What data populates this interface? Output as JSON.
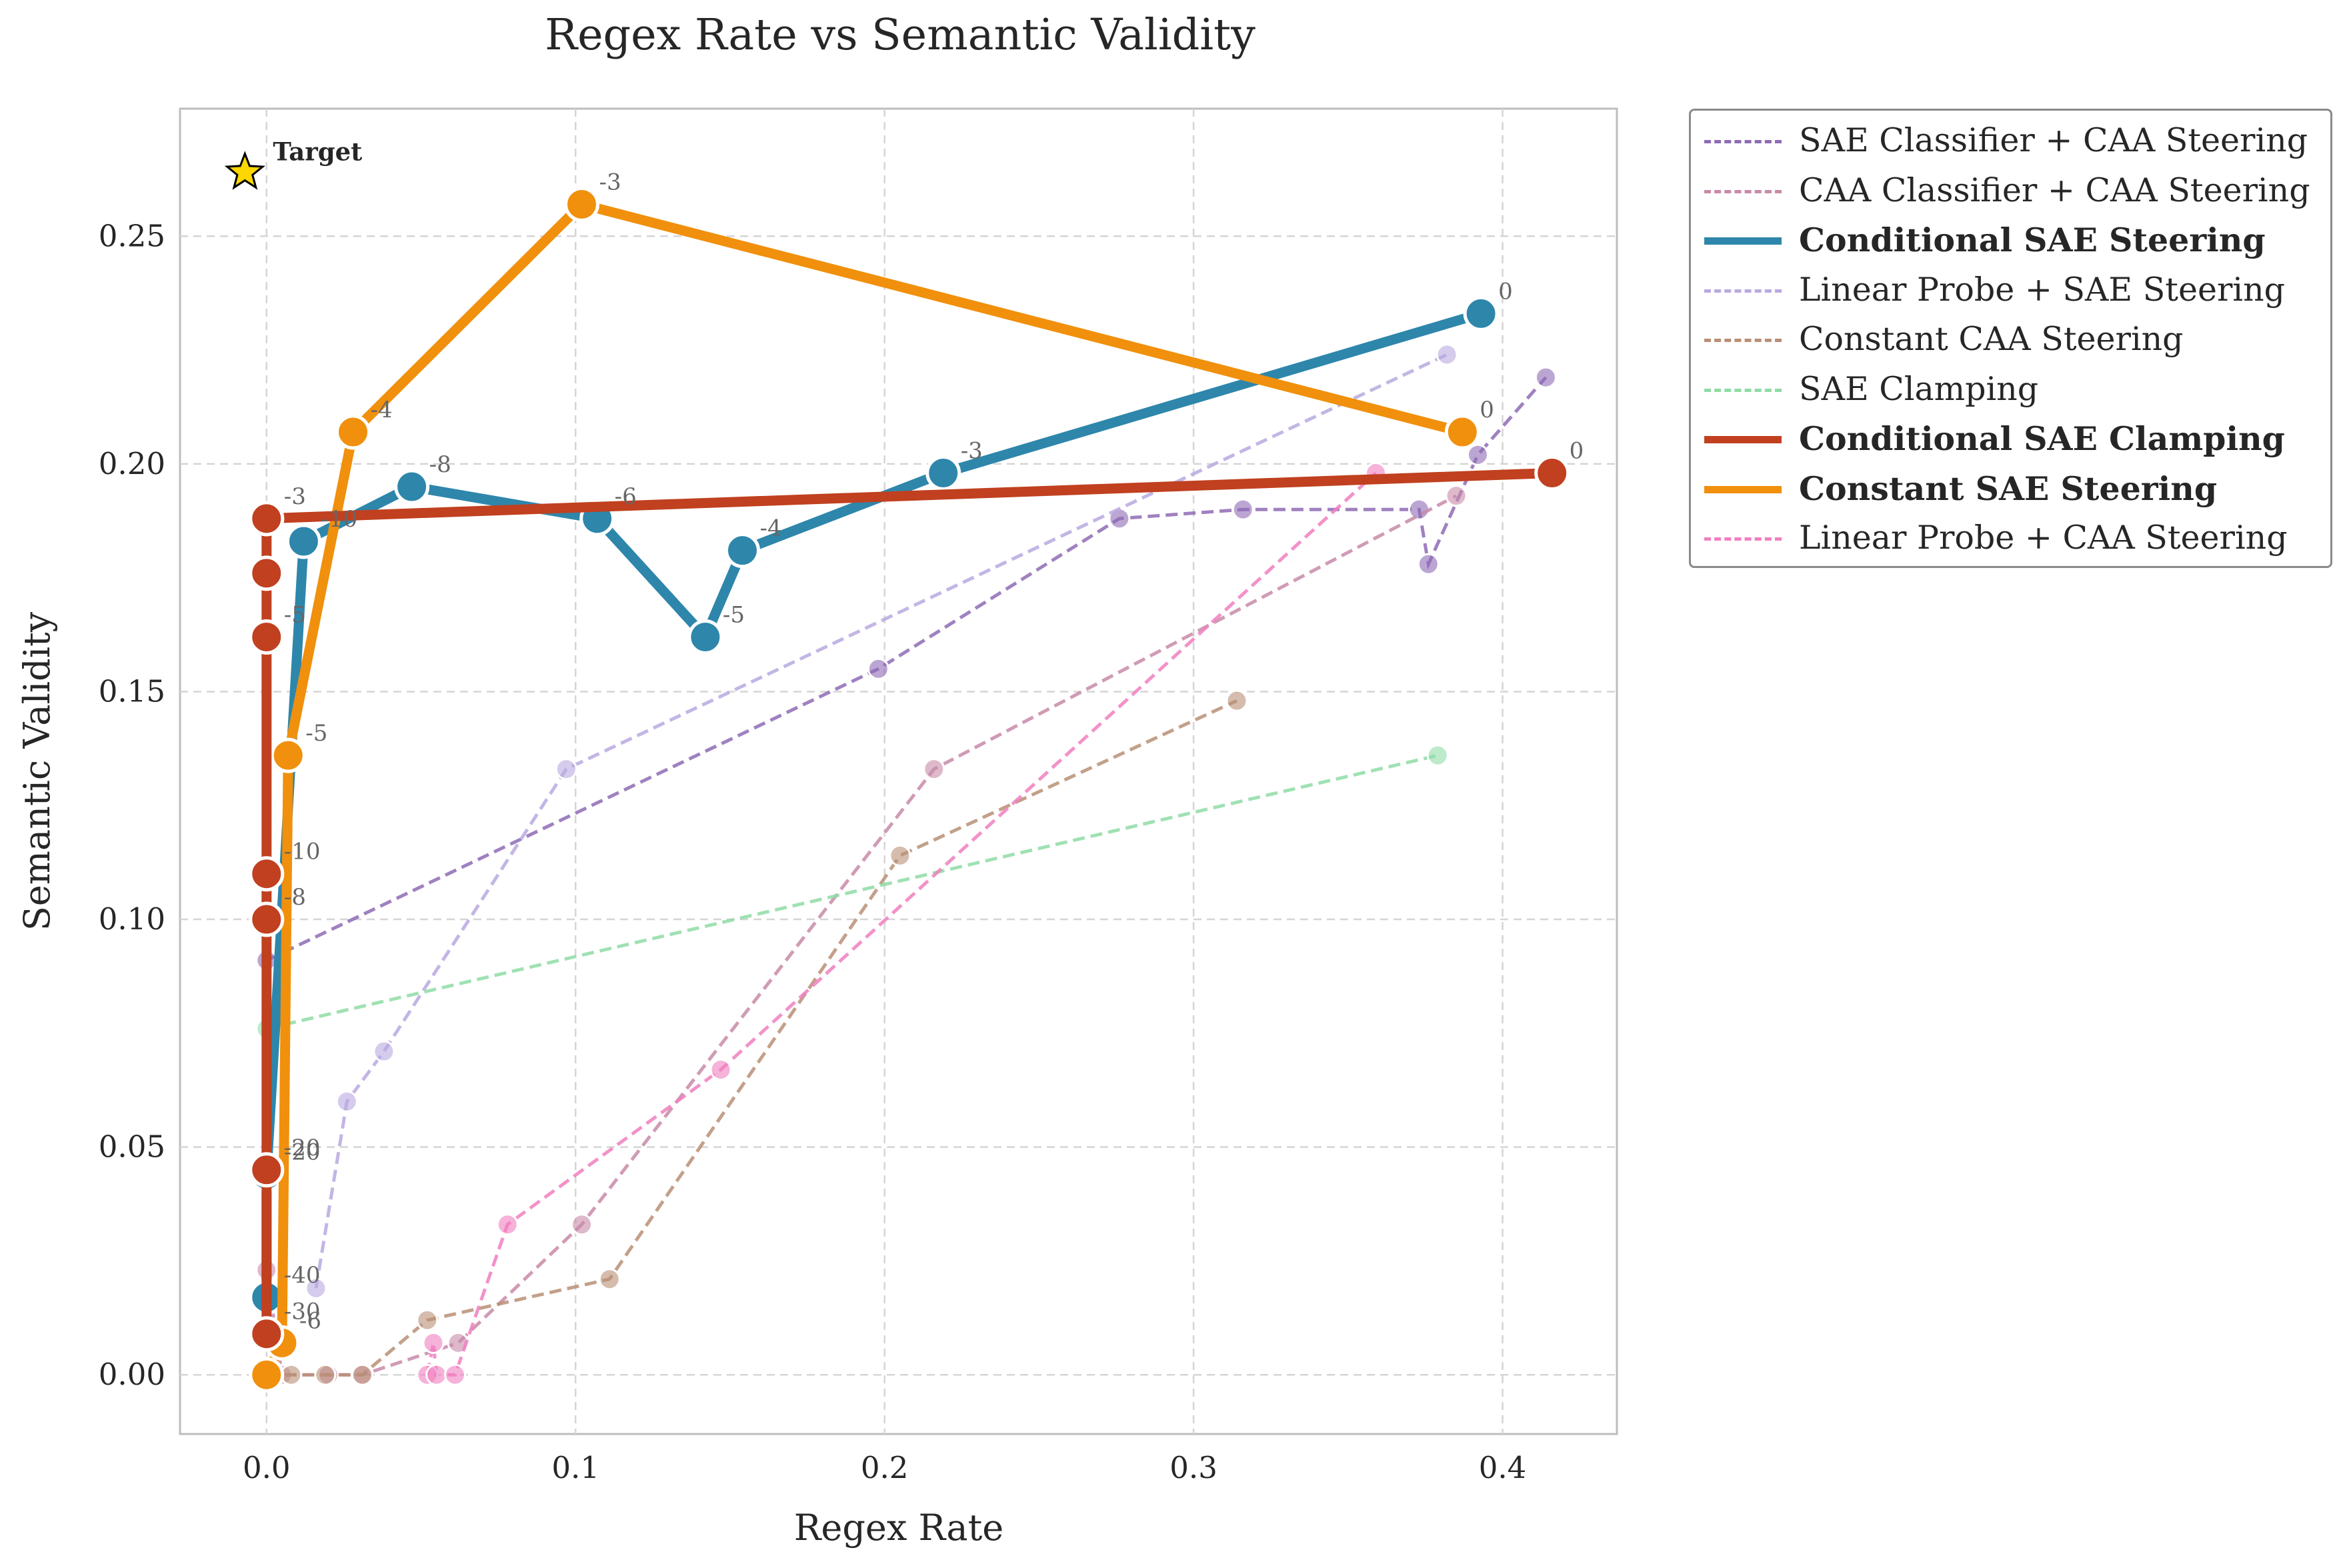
{
  "chart_data": {
    "type": "line",
    "title": "Regex Rate vs Semantic Validity",
    "xlabel": "Regex Rate",
    "ylabel": "Semantic Validity",
    "xlim": [
      -0.028,
      0.437
    ],
    "ylim": [
      -0.013,
      0.278
    ],
    "xticks": [
      0.0,
      0.1,
      0.2,
      0.3,
      0.4
    ],
    "xtick_labels": [
      "0.0",
      "0.1",
      "0.2",
      "0.3",
      "0.4"
    ],
    "yticks": [
      0.0,
      0.05,
      0.1,
      0.15,
      0.2,
      0.25
    ],
    "ytick_labels": [
      "0.00",
      "0.05",
      "0.10",
      "0.15",
      "0.20",
      "0.25"
    ],
    "grid": true,
    "legend_position": "outside-right-top",
    "target": {
      "x": -0.007,
      "y": 0.264,
      "label": "Target",
      "color": "#FFD700"
    },
    "series": [
      {
        "name": "SAE Classifier + CAA Steering",
        "color": "#8e6bb5",
        "style": "dashed",
        "emphasis": false,
        "x": [
          0.0,
          0.198,
          0.276,
          0.316,
          0.373,
          0.376,
          0.392,
          0.414
        ],
        "y": [
          0.091,
          0.155,
          0.188,
          0.19,
          0.19,
          0.178,
          0.202,
          0.219
        ],
        "point_labels": []
      },
      {
        "name": "CAA Classifier + CAA Steering",
        "color": "#c88aa8",
        "style": "dashed",
        "emphasis": false,
        "x": [
          0.0,
          0.005,
          0.02,
          0.031,
          0.062,
          0.102,
          0.216,
          0.385
        ],
        "y": [
          0.023,
          0.0,
          0.0,
          0.0,
          0.007,
          0.033,
          0.133,
          0.193
        ],
        "point_labels": []
      },
      {
        "name": "Conditional SAE Steering",
        "color": "#2e86ab",
        "style": "solid",
        "emphasis": true,
        "x": [
          0.0,
          0.0,
          0.012,
          0.047,
          0.107,
          0.142,
          0.154,
          0.219,
          0.393
        ],
        "y": [
          0.017,
          0.044,
          0.183,
          0.195,
          0.188,
          0.162,
          0.181,
          0.198,
          0.233
        ],
        "point_labels": [
          "-40",
          "-20",
          "-10",
          "-8",
          "-6",
          "-5",
          "-4",
          "-3",
          "0"
        ]
      },
      {
        "name": "Linear Probe + SAE Steering",
        "color": "#b9a9e0",
        "style": "dashed",
        "emphasis": false,
        "x": [
          0.016,
          0.026,
          0.038,
          0.097,
          0.382
        ],
        "y": [
          0.019,
          0.06,
          0.071,
          0.133,
          0.224
        ],
        "point_labels": []
      },
      {
        "name": "Constant CAA Steering",
        "color": "#b98f76",
        "style": "dashed",
        "emphasis": false,
        "x": [
          0.0,
          0.008,
          0.019,
          0.031,
          0.052,
          0.111,
          0.205,
          0.314
        ],
        "y": [
          0.0,
          0.0,
          0.0,
          0.0,
          0.012,
          0.021,
          0.114,
          0.148
        ],
        "point_labels": []
      },
      {
        "name": "SAE Clamping",
        "color": "#8fdca6",
        "style": "dashed",
        "emphasis": false,
        "x": [
          0.0,
          0.379
        ],
        "y": [
          0.076,
          0.136
        ],
        "point_labels": []
      },
      {
        "name": "Conditional SAE Clamping",
        "color": "#c0401f",
        "style": "solid",
        "emphasis": true,
        "x": [
          0.0,
          0.0,
          0.0,
          0.0,
          0.0,
          0.0,
          0.0,
          0.0,
          0.416
        ],
        "y": [
          0.009,
          0.045,
          0.1,
          0.11,
          0.162,
          0.176,
          0.188,
          0.188,
          0.198
        ],
        "point_labels": [
          "-30",
          "-20",
          "-8",
          "-10",
          "-5",
          "",
          "-3",
          "",
          "0"
        ]
      },
      {
        "name": "Constant SAE Steering",
        "color": "#f0900c",
        "style": "solid",
        "emphasis": true,
        "x": [
          0.0,
          0.005,
          0.007,
          0.028,
          0.102,
          0.387
        ],
        "y": [
          0.0,
          0.007,
          0.136,
          0.207,
          0.257,
          0.207
        ],
        "point_labels": [
          "",
          "-6",
          "-5",
          "-4",
          "-3",
          "0"
        ]
      },
      {
        "name": "Linear Probe + CAA Steering",
        "color": "#f07fbf",
        "style": "dashed",
        "emphasis": false,
        "x": [
          0.052,
          0.054,
          0.055,
          0.061,
          0.078,
          0.147,
          0.359
        ],
        "y": [
          0.0,
          0.007,
          0.0,
          0.0,
          0.033,
          0.067,
          0.198
        ],
        "point_labels": []
      }
    ],
    "draw_order": [
      "SAE Classifier + CAA Steering",
      "CAA Classifier + CAA Steering",
      "Linear Probe + SAE Steering",
      "Constant CAA Steering",
      "SAE Clamping",
      "Linear Probe + CAA Steering",
      "Conditional SAE Steering",
      "Constant SAE Steering",
      "Conditional SAE Clamping"
    ]
  }
}
